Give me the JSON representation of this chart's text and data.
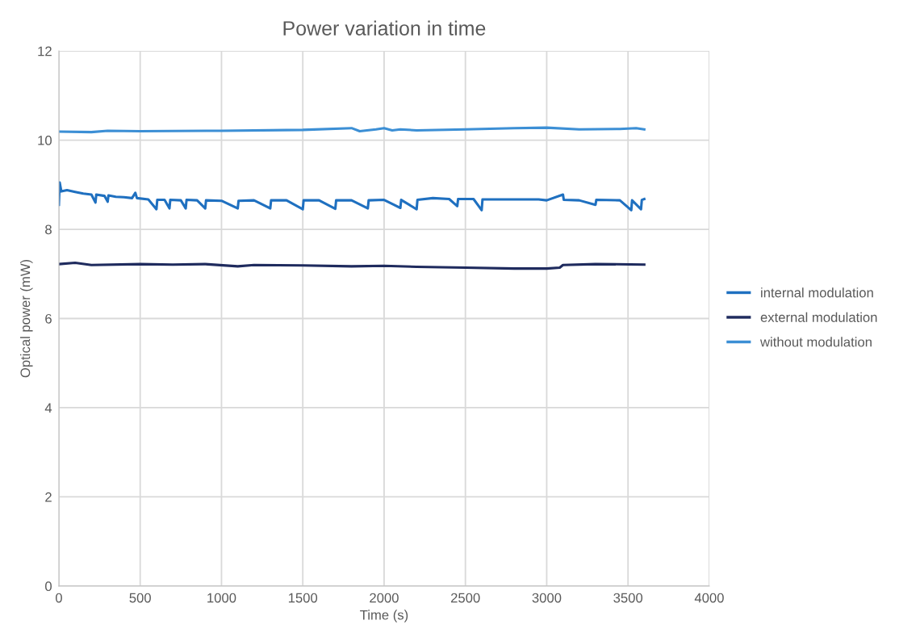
{
  "chart_data": {
    "type": "line",
    "title": "Power variation in time",
    "xlabel": "Time (s)",
    "ylabel": "Optical power (mW)",
    "xlim": [
      0,
      4000
    ],
    "xticks": [
      0,
      500,
      1000,
      1500,
      2000,
      2500,
      3000,
      3500,
      4000
    ],
    "ylim": [
      0,
      12
    ],
    "yticks": [
      0,
      2,
      4,
      6,
      8,
      10,
      12
    ],
    "grid": true,
    "legend": "right",
    "marker": "none",
    "line_style": "solid",
    "series": [
      {
        "name": "internal modulation",
        "color": "#1f70c0",
        "x": [
          0,
          5,
          15,
          50,
          100,
          150,
          200,
          225,
          230,
          280,
          300,
          305,
          350,
          400,
          450,
          470,
          480,
          550,
          600,
          605,
          650,
          680,
          685,
          750,
          780,
          785,
          850,
          900,
          905,
          1000,
          1100,
          1105,
          1200,
          1300,
          1305,
          1400,
          1500,
          1505,
          1600,
          1700,
          1705,
          1800,
          1900,
          1905,
          2000,
          2100,
          2105,
          2200,
          2205,
          2300,
          2400,
          2450,
          2455,
          2550,
          2600,
          2605,
          2700,
          2800,
          2950,
          3000,
          3100,
          3105,
          3200,
          3300,
          3305,
          3450,
          3520,
          3525,
          3580,
          3585,
          3600
        ],
        "values": [
          8.55,
          9.05,
          8.85,
          8.88,
          8.84,
          8.8,
          8.78,
          8.6,
          8.78,
          8.75,
          8.62,
          8.76,
          8.73,
          8.72,
          8.7,
          8.82,
          8.7,
          8.67,
          8.45,
          8.66,
          8.66,
          8.47,
          8.66,
          8.65,
          8.47,
          8.66,
          8.65,
          8.47,
          8.65,
          8.64,
          8.47,
          8.64,
          8.65,
          8.47,
          8.65,
          8.65,
          8.45,
          8.65,
          8.65,
          8.46,
          8.65,
          8.65,
          8.47,
          8.65,
          8.66,
          8.48,
          8.66,
          8.45,
          8.66,
          8.7,
          8.68,
          8.52,
          8.68,
          8.68,
          8.43,
          8.67,
          8.67,
          8.67,
          8.67,
          8.65,
          8.78,
          8.66,
          8.65,
          8.55,
          8.66,
          8.65,
          8.43,
          8.65,
          8.45,
          8.66,
          8.68
        ]
      },
      {
        "name": "external modulation",
        "color": "#1f2b5e",
        "x": [
          0,
          100,
          200,
          500,
          700,
          900,
          1100,
          1200,
          1500,
          1800,
          2000,
          2200,
          2500,
          2800,
          3000,
          3080,
          3100,
          3300,
          3600
        ],
        "values": [
          7.22,
          7.25,
          7.2,
          7.22,
          7.21,
          7.22,
          7.17,
          7.2,
          7.19,
          7.17,
          7.18,
          7.16,
          7.14,
          7.12,
          7.12,
          7.14,
          7.2,
          7.22,
          7.21
        ]
      },
      {
        "name": "without modulation",
        "color": "#3c8fd5",
        "x": [
          0,
          200,
          300,
          500,
          1000,
          1500,
          1800,
          1850,
          1950,
          2000,
          2050,
          2100,
          2200,
          2500,
          2800,
          3000,
          3200,
          3450,
          3550,
          3600
        ],
        "values": [
          10.19,
          10.18,
          10.21,
          10.2,
          10.21,
          10.23,
          10.27,
          10.2,
          10.24,
          10.27,
          10.22,
          10.24,
          10.22,
          10.24,
          10.27,
          10.28,
          10.24,
          10.25,
          10.27,
          10.24
        ]
      }
    ]
  }
}
